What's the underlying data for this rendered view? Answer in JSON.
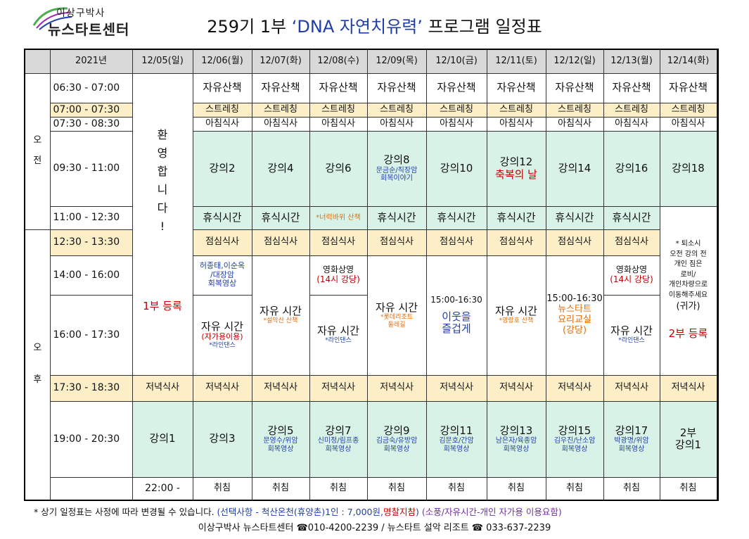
{
  "logo": {
    "top": "이상구박사",
    "main": "뉴스타트센터"
  },
  "title": {
    "prefix": "259기 1부 ",
    "highlight": "‘DNA 자연치유력’",
    "suffix": " 프로그램 일정표"
  },
  "header": {
    "year": "2021년",
    "dates": [
      "12/05(일)",
      "12/06(월)",
      "12/07(화)",
      "12/08(수)",
      "12/09(목)",
      "12/10(금)",
      "12/11(토)",
      "12/12(일)",
      "12/13(월)",
      "12/14(화)"
    ]
  },
  "periods": {
    "am": [
      "오",
      "전"
    ],
    "pm": [
      "오",
      "후"
    ]
  },
  "times": [
    "06:30 - 07:00",
    "07:00 - 07:30",
    "07:30 - 08:30",
    "09:30 - 11:00",
    "11:00 - 12:30",
    "12:30 - 13:30",
    "14:00 - 16:00",
    "16:00 - 17:30",
    "17:30 - 18:30",
    "19:00 - 20:30",
    "22:00 -"
  ],
  "day1": {
    "welcome": [
      "환",
      "영",
      "합",
      "니",
      "다",
      "!"
    ],
    "register": "1부 등록"
  },
  "walk": "자유산책",
  "stretch": "스트레칭",
  "breakfast": "아침식사",
  "lectures_am": [
    {
      "t": "강의2"
    },
    {
      "t": "강의4"
    },
    {
      "t": "강의6"
    },
    {
      "t": "강의8",
      "s1": "문금순/직장암",
      "s2": "회복이야기"
    },
    {
      "t": "강의10"
    },
    {
      "t": "강의12",
      "r": "축복의 날"
    },
    {
      "t": "강의14"
    },
    {
      "t": "강의16"
    },
    {
      "t": "강의18"
    }
  ],
  "rest": "휴식시간",
  "rest_special": "*너럭바위 산책",
  "lunch": "점심식사",
  "last_day_note": [
    "* 퇴소시",
    "오전 강의 전",
    "개인 짐은",
    "로비/",
    "개인차량으로",
    "이동해주세요"
  ],
  "last_day_gwiga": "(귀가)",
  "last_day_register": "2부 등록",
  "afternoon": {
    "d06_top": [
      "허종태,이순옥",
      "/대장암",
      "회복영상"
    ],
    "d06_main": "자유 시간",
    "d06_red": "(자가용이용)",
    "d06_sub": "*라인댄스",
    "d07_main": "자유 시간",
    "d07_sub": "*설악산 산책",
    "d08_top": "영화상영",
    "d08_top_red": "(14시 강당)",
    "d08_main": "자유 시간",
    "d08_sub": "*라인댄스",
    "d09_main": "자유 시간",
    "d09_sub1": "*롯데리조트",
    "d09_sub2": "둘레길",
    "d10_time": "15:00-16:30",
    "d10_main1": "이웃을",
    "d10_main2": "즐겁게",
    "d11_main": "자유 시간",
    "d11_sub": "*영랑호 산책",
    "d12_time": "15:00-16:30",
    "d12_l1": "뉴스타트",
    "d12_l2": "요리교실",
    "d12_l3": "(강당)",
    "d13_top": "영화상영",
    "d13_top_red": "(14시 강당)",
    "d13_main": "자유 시간",
    "d13_sub": "*라인댄스"
  },
  "dinner": "저녁식사",
  "lectures_pm": [
    {
      "t": "강의1"
    },
    {
      "t": "강의3"
    },
    {
      "t": "강의5",
      "s1": "문영수/위암",
      "s2": "회복영상"
    },
    {
      "t": "강의7",
      "s1": "신미정/림프종",
      "s2": "회복영상"
    },
    {
      "t": "강의9",
      "s1": "김금숙/유방암",
      "s2": "회복영상"
    },
    {
      "t": "강의11",
      "s1": "김문호/간암",
      "s2": "회복영상"
    },
    {
      "t": "강의13",
      "s1": "남은자/육종암",
      "s2": "회복영상"
    },
    {
      "t": "강의15",
      "s1": "김우진/난소암",
      "s2": "회복영상"
    },
    {
      "t": "강의17",
      "s1": "박광명/위암",
      "s2": "회복영상"
    },
    {
      "t": "2부",
      "t2": "강의1"
    }
  ],
  "sleep": "취침",
  "footer": {
    "note": "* 상기 일정표는 사정에 따라 변경될 수 있습니다.",
    "option": " (선택사항 - 척산온천(휴양촌)1인 : 7,000원,",
    "option_red": "명찰지참",
    "option_end": ")",
    "purple": " (소풍/자유시간-개인 자가용 이용요함)",
    "contact": "이상구박사 뉴스타트센터 ☎010-4200-2239 /  뉴스타트 설악 리조트 ☎ 033-637-2239"
  },
  "colors": {
    "green": "#d9f2e8",
    "yellow": "#fcefc7",
    "header": "#d9d9d9",
    "red": "#c00000",
    "blue": "#1f3ea8"
  }
}
